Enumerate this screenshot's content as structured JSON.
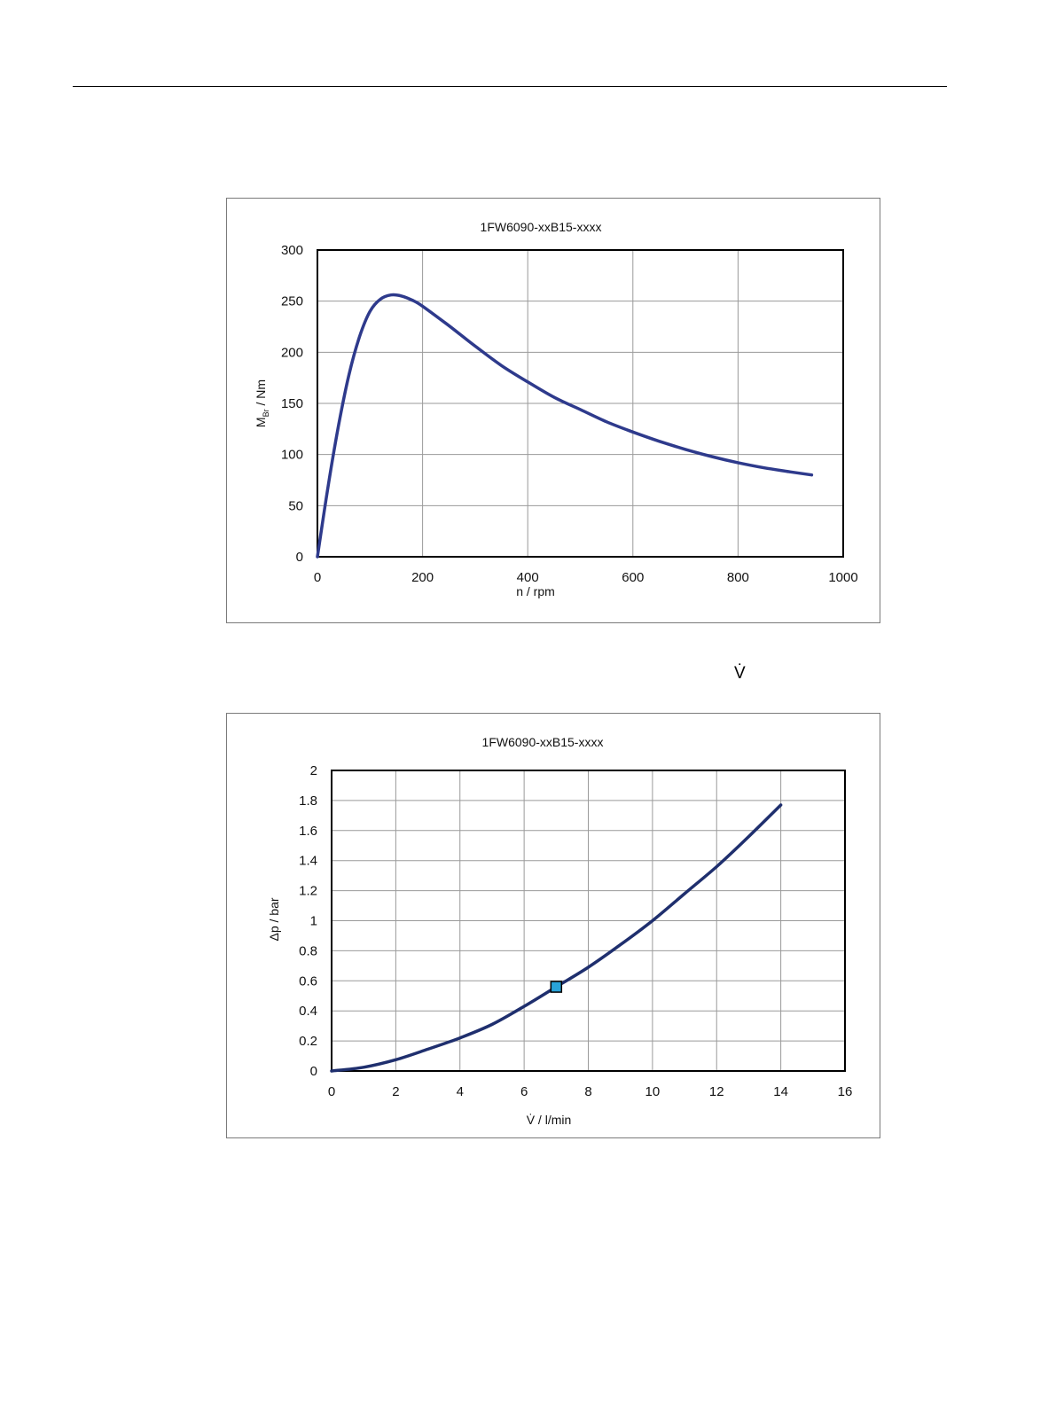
{
  "page": {
    "floating_symbol": "V̇"
  },
  "chart_data": [
    {
      "type": "line",
      "title": "1FW6090-xxB15-xxxx",
      "xlabel": "n / rpm",
      "ylabel_main": "M",
      "ylabel_sub": "Br",
      "ylabel_rest": " / Nm",
      "xlim": [
        0,
        1000
      ],
      "ylim": [
        0,
        300
      ],
      "xticks": [
        0,
        200,
        400,
        600,
        800,
        1000
      ],
      "yticks": [
        0,
        50,
        100,
        150,
        200,
        250,
        300
      ],
      "grid": true,
      "line_color": "#2e3a8c",
      "series": [
        {
          "x": [
            0,
            20,
            40,
            60,
            80,
            100,
            120,
            140,
            160,
            180,
            200,
            250,
            300,
            350,
            400,
            450,
            500,
            550,
            600,
            650,
            700,
            750,
            800,
            850,
            900,
            940
          ],
          "y": [
            0,
            68,
            128,
            178,
            215,
            240,
            252,
            256,
            255,
            251,
            245,
            226,
            206,
            187,
            171,
            156,
            144,
            132,
            122,
            113,
            105,
            98,
            92,
            87,
            83,
            80
          ]
        }
      ]
    },
    {
      "type": "line",
      "title": "1FW6090-xxB15-xxxx",
      "xlabel": "V̇ / l/min",
      "ylabel": "Δp / bar",
      "xlim": [
        0,
        16
      ],
      "ylim": [
        0,
        2
      ],
      "xticks": [
        0,
        2,
        4,
        6,
        8,
        10,
        12,
        14,
        16
      ],
      "yticks": [
        "0",
        "0.2",
        "0.4",
        "0.6",
        "0.8",
        "1",
        "1.2",
        "1.4",
        "1.6",
        "1.8",
        "2"
      ],
      "grid": true,
      "line_color": "#1f2f6e",
      "marker_color": "#29a3d8",
      "series": [
        {
          "x": [
            0,
            1,
            2,
            3,
            4,
            5,
            6,
            7,
            8,
            9,
            10,
            11,
            12,
            13,
            14
          ],
          "y": [
            0,
            0.025,
            0.075,
            0.145,
            0.22,
            0.31,
            0.43,
            0.56,
            0.69,
            0.84,
            1.0,
            1.18,
            1.36,
            1.56,
            1.77
          ]
        }
      ],
      "marker": {
        "x": 7,
        "y": 0.56
      }
    }
  ]
}
